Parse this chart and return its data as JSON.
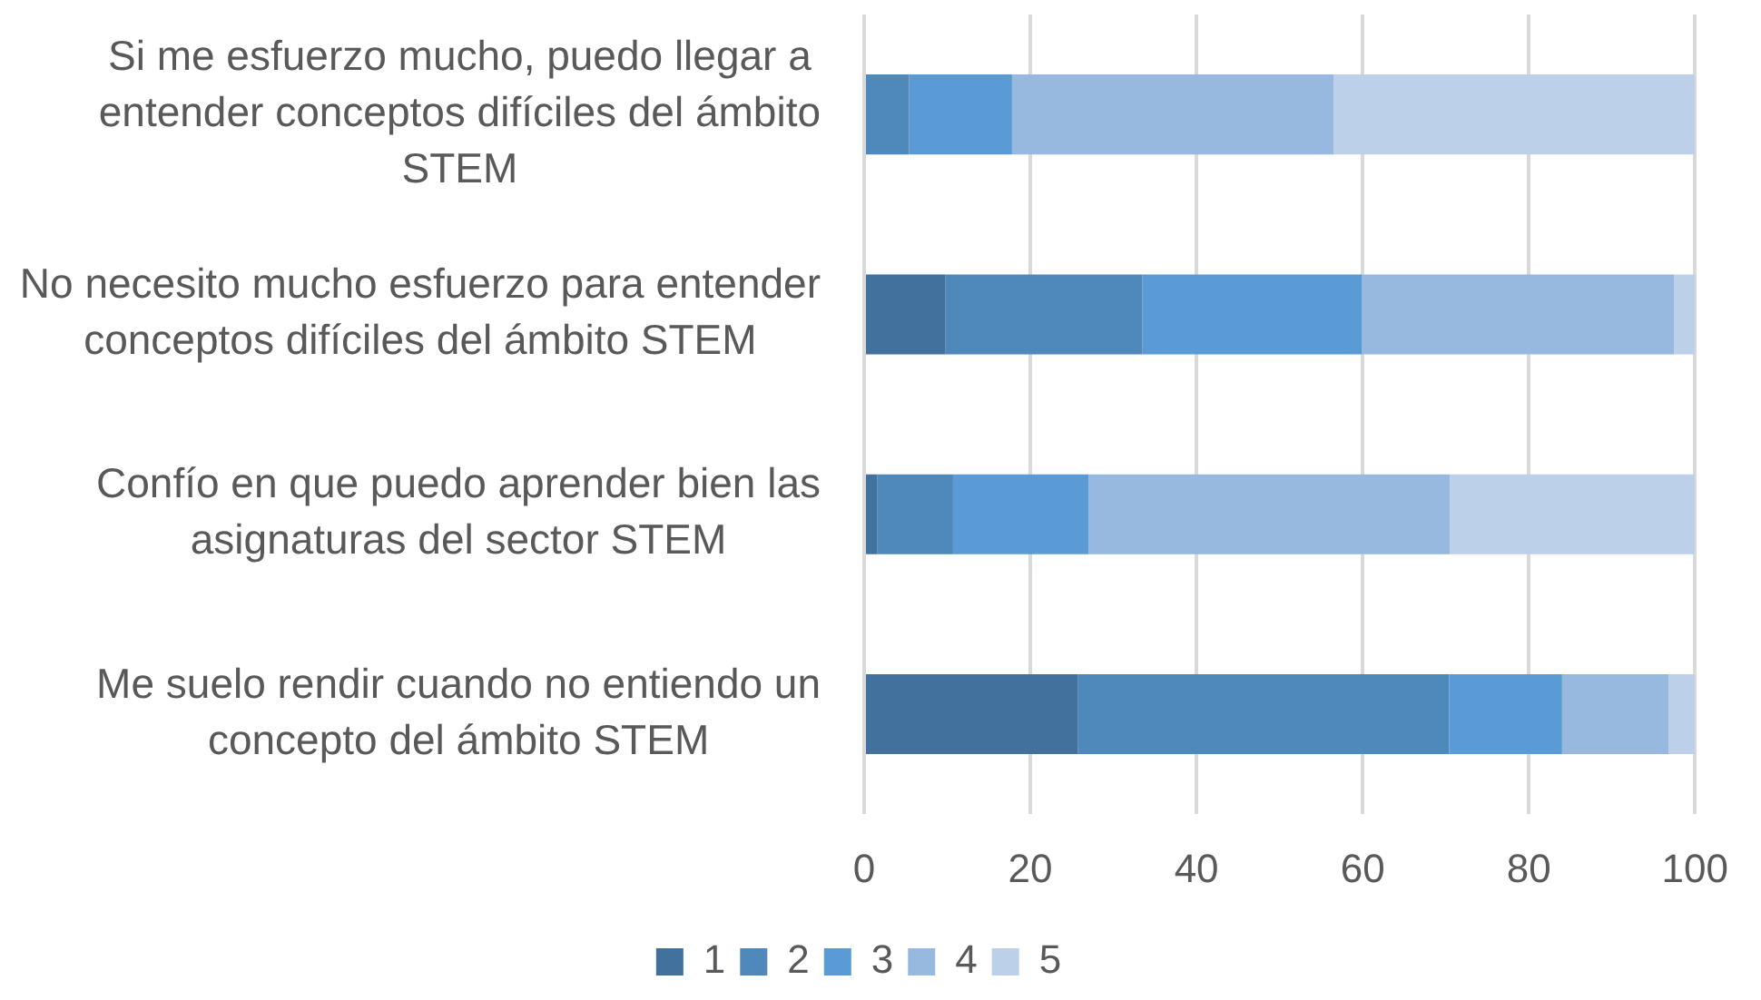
{
  "chart_data": {
    "type": "bar",
    "orientation": "horizontal",
    "stacked": true,
    "categories": [
      "Si me esfuerzo mucho, puedo llegar a entender conceptos difíciles del ámbito STEM",
      "No necesito mucho esfuerzo para entender conceptos difíciles del ámbito STEM",
      "Confío en que puedo aprender bien las asignaturas del sector STEM",
      "Me suelo rendir cuando no entiendo un concepto del ámbito STEM"
    ],
    "series": [
      {
        "name": "1",
        "color": "#41719c",
        "values": [
          0,
          9.8,
          1.6,
          25.7
        ]
      },
      {
        "name": "2",
        "color": "#4f88bb",
        "values": [
          5.4,
          23.7,
          9.1,
          44.7
        ]
      },
      {
        "name": "3",
        "color": "#5b9bd5",
        "values": [
          12.4,
          26.4,
          16.3,
          13.6
        ]
      },
      {
        "name": "4",
        "color": "#98b9df",
        "values": [
          38.7,
          37.6,
          43.5,
          12.8
        ]
      },
      {
        "name": "5",
        "color": "#bdd0e9",
        "values": [
          43.5,
          2.6,
          29.5,
          3.2
        ]
      }
    ],
    "xlim": [
      0,
      100
    ],
    "xticks": [
      0,
      20,
      40,
      60,
      80,
      100
    ],
    "grid": "x",
    "legend": "bottom"
  }
}
